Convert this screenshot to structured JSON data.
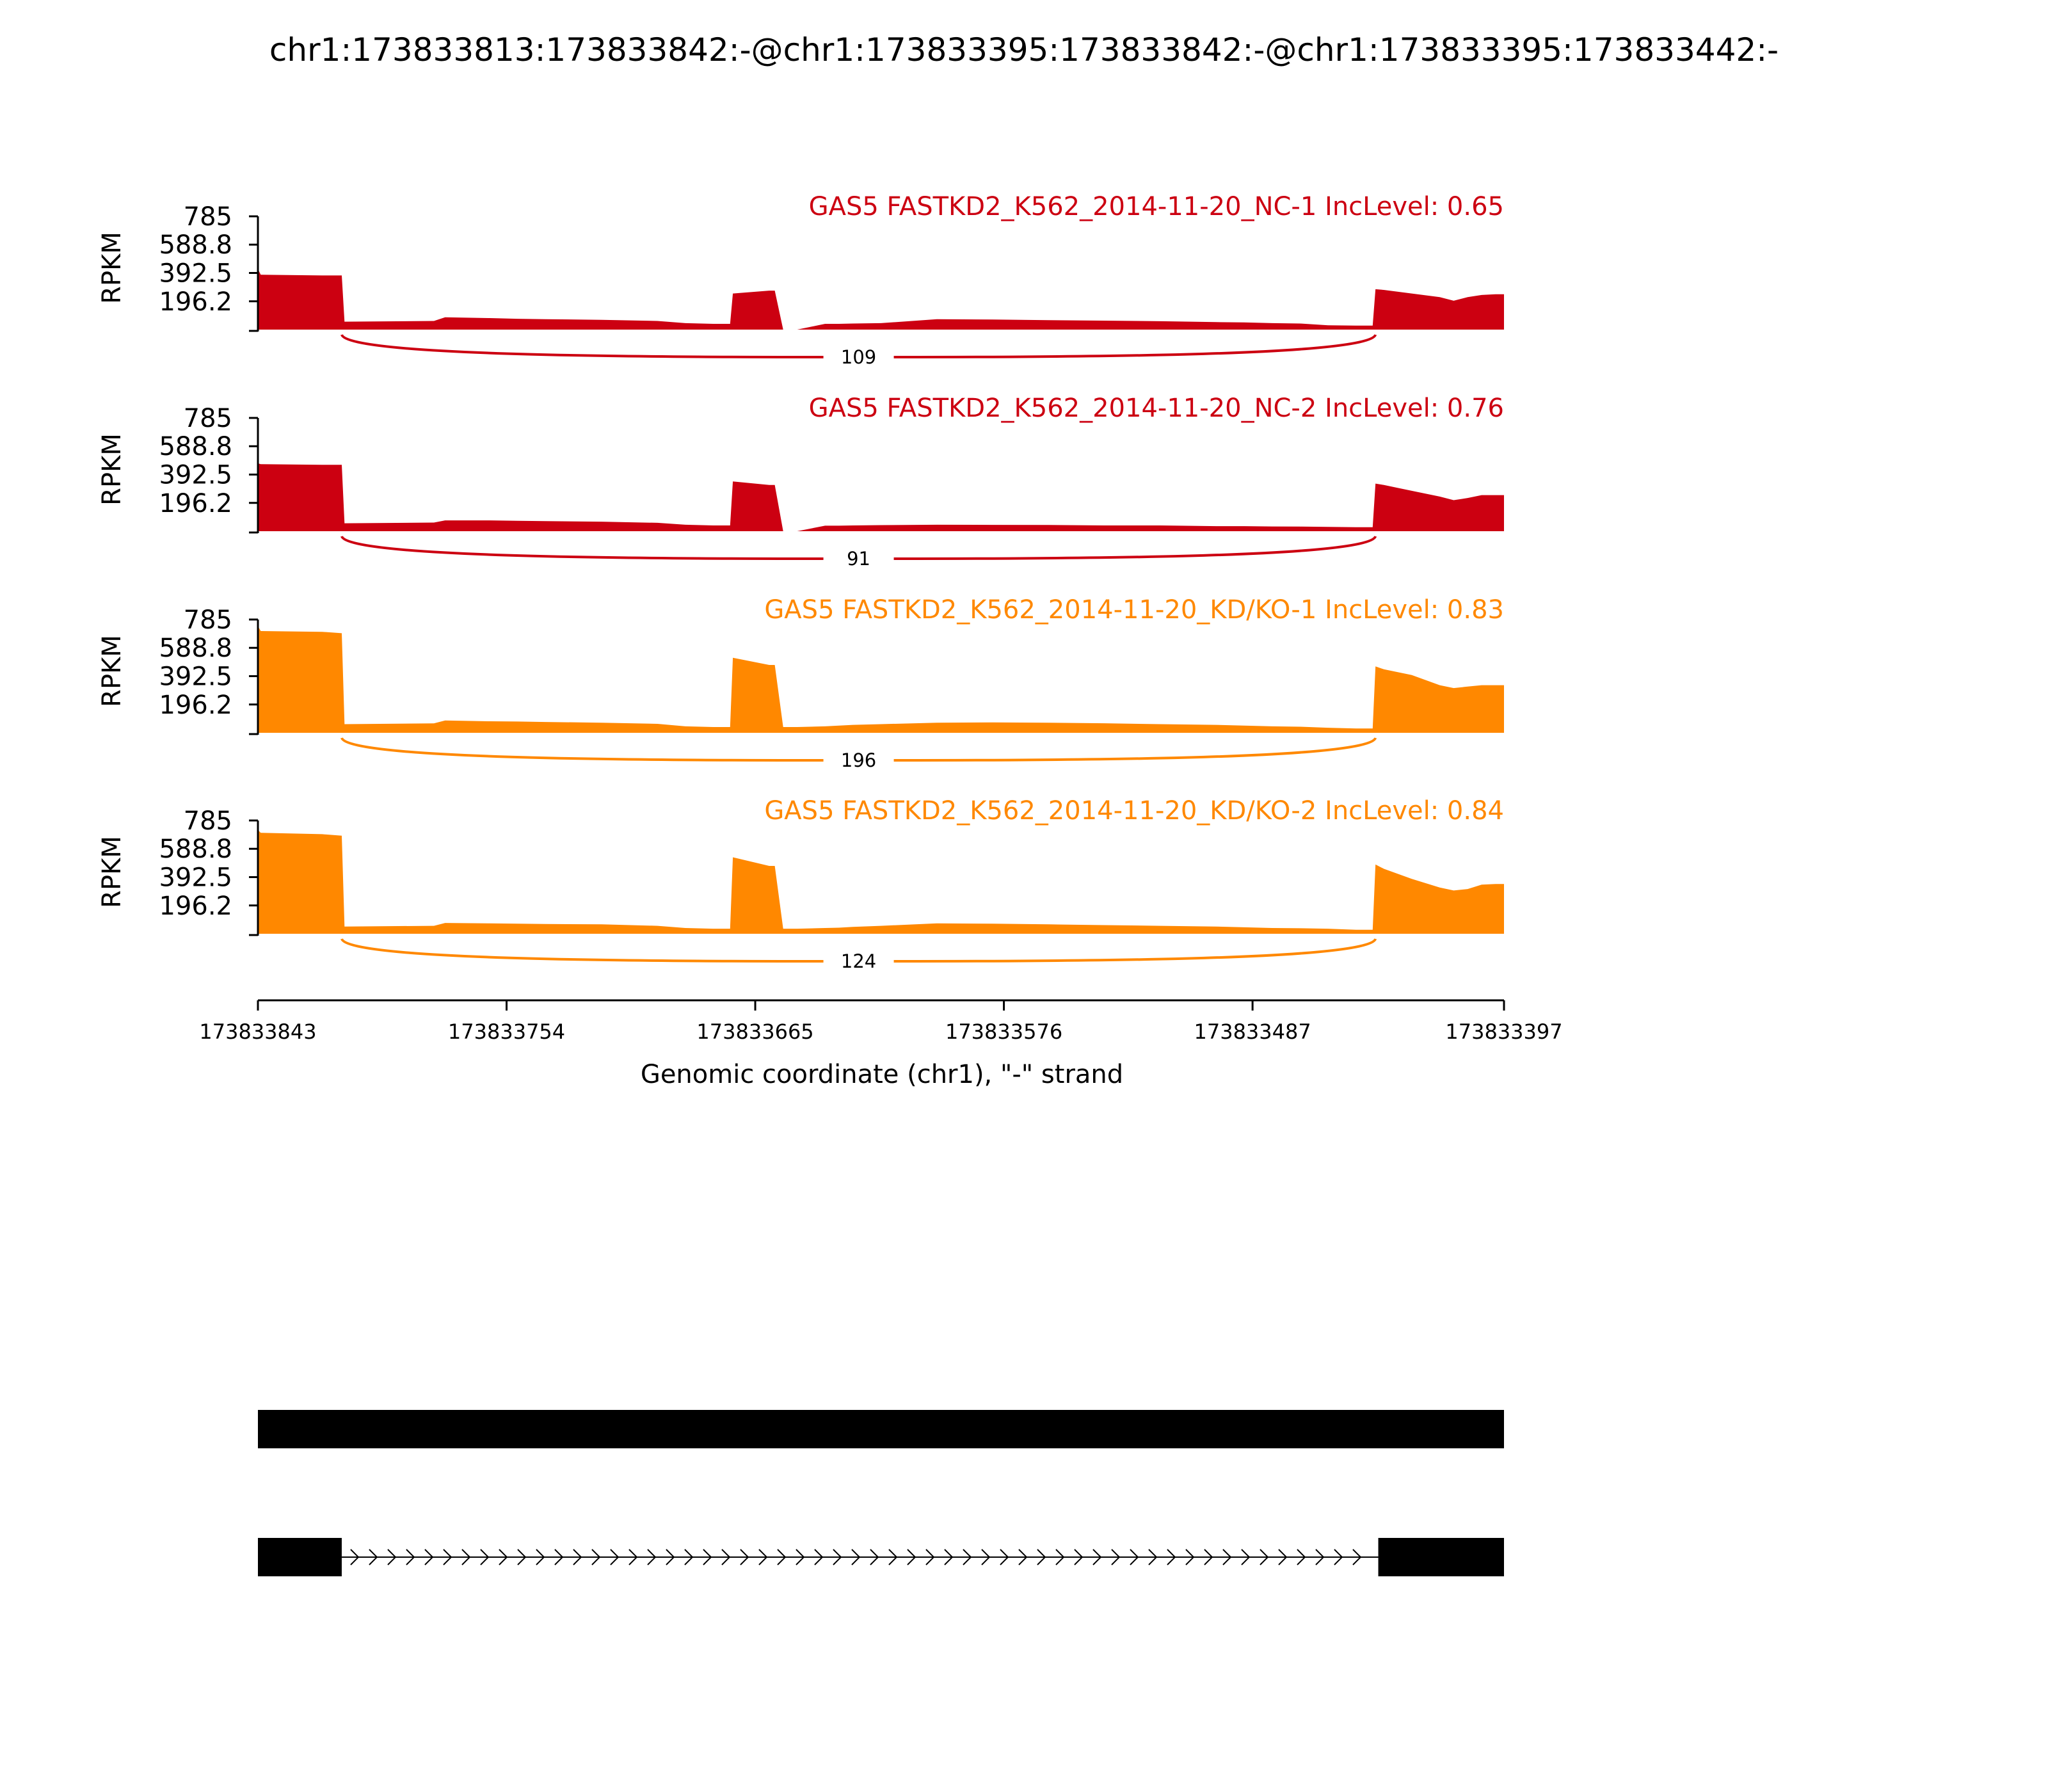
{
  "title": "chr1:173833813:173833842:-@chr1:173833395:173833842:-@chr1:173833395:173833442:-",
  "chart_data": {
    "type": "area",
    "ylabel": "RPKM",
    "xlabel": "Genomic coordinate (chr1), \"-\" strand",
    "xlim": [
      173833843,
      173833397
    ],
    "xticks": [
      "173833843",
      "173833754",
      "173833665",
      "173833576",
      "173833487",
      "173833397"
    ],
    "xtick_values": [
      173833843,
      173833754,
      173833665,
      173833576,
      173833487,
      173833397
    ],
    "ylim": [
      0,
      785
    ],
    "yticks": [
      "785",
      "588.8",
      "392.5",
      "196.2"
    ],
    "ytick_values": [
      785,
      588.8,
      392.5,
      196.2
    ],
    "x_profile": [
      173833843,
      173833842,
      173833820,
      173833813,
      173833812,
      173833780,
      173833776,
      173833760,
      173833750,
      173833740,
      173833720,
      173833700,
      173833690,
      173833680,
      173833674,
      173833673,
      173833660,
      173833658,
      173833655,
      173833650,
      173833640,
      173833635,
      173833630,
      173833620,
      173833600,
      173833580,
      173833560,
      173833540,
      173833520,
      173833500,
      173833490,
      173833480,
      173833470,
      173833460,
      173833450,
      173833444,
      173833443,
      173833440,
      173833430,
      173833420,
      173833415,
      173833410,
      173833405,
      173833400,
      173833397
    ],
    "series": [
      {
        "name": "GAS5 FASTKD2_K562_2014-11-20_NC-1 IncLevel: 0.65",
        "color": "#cc0011",
        "junction_count": "109",
        "values": [
          420,
          380,
          375,
          375,
          55,
          60,
          85,
          80,
          75,
          72,
          68,
          60,
          45,
          40,
          40,
          250,
          270,
          270,
          0,
          0,
          40,
          40,
          42,
          45,
          72,
          70,
          65,
          62,
          58,
          52,
          50,
          45,
          42,
          30,
          28,
          28,
          280,
          275,
          250,
          225,
          200,
          225,
          240,
          245,
          245
        ]
      },
      {
        "name": "GAS5 FASTKD2_K562_2014-11-20_NC-2 IncLevel: 0.76",
        "color": "#cc0011",
        "junction_count": "91",
        "values": [
          470,
          465,
          460,
          460,
          55,
          60,
          75,
          75,
          72,
          70,
          66,
          58,
          45,
          40,
          40,
          345,
          320,
          320,
          0,
          0,
          38,
          38,
          40,
          42,
          45,
          44,
          43,
          40,
          40,
          35,
          35,
          33,
          32,
          30,
          28,
          28,
          330,
          320,
          280,
          240,
          215,
          230,
          250,
          250,
          250
        ]
      },
      {
        "name": "GAS5 FASTKD2_K562_2014-11-20_KD/KO-1 IncLevel: 0.83",
        "color": "#ff8800",
        "junction_count": "196",
        "values": [
          740,
          705,
          700,
          690,
          60,
          65,
          85,
          80,
          78,
          75,
          70,
          62,
          45,
          40,
          40,
          520,
          470,
          470,
          40,
          40,
          45,
          50,
          55,
          60,
          70,
          72,
          70,
          66,
          60,
          55,
          50,
          45,
          42,
          35,
          30,
          30,
          460,
          440,
          400,
          330,
          310,
          320,
          330,
          330,
          330
        ]
      },
      {
        "name": "GAS5 FASTKD2_K562_2014-11-20_KD/KO-2 IncLevel: 0.84",
        "color": "#ff8800",
        "junction_count": "124",
        "values": [
          720,
          700,
          690,
          680,
          50,
          55,
          75,
          72,
          70,
          68,
          65,
          55,
          40,
          35,
          35,
          530,
          470,
          470,
          35,
          35,
          40,
          42,
          48,
          55,
          72,
          70,
          65,
          60,
          55,
          50,
          45,
          40,
          38,
          35,
          28,
          28,
          480,
          450,
          380,
          320,
          300,
          310,
          340,
          345,
          345
        ]
      }
    ],
    "gene_tracks": [
      {
        "exons": [
          [
            173833843,
            173833397
          ]
        ],
        "strand": "-"
      },
      {
        "exons": [
          [
            173833843,
            173833813
          ],
          [
            173833442,
            173833397
          ]
        ],
        "strand": "-"
      }
    ]
  }
}
